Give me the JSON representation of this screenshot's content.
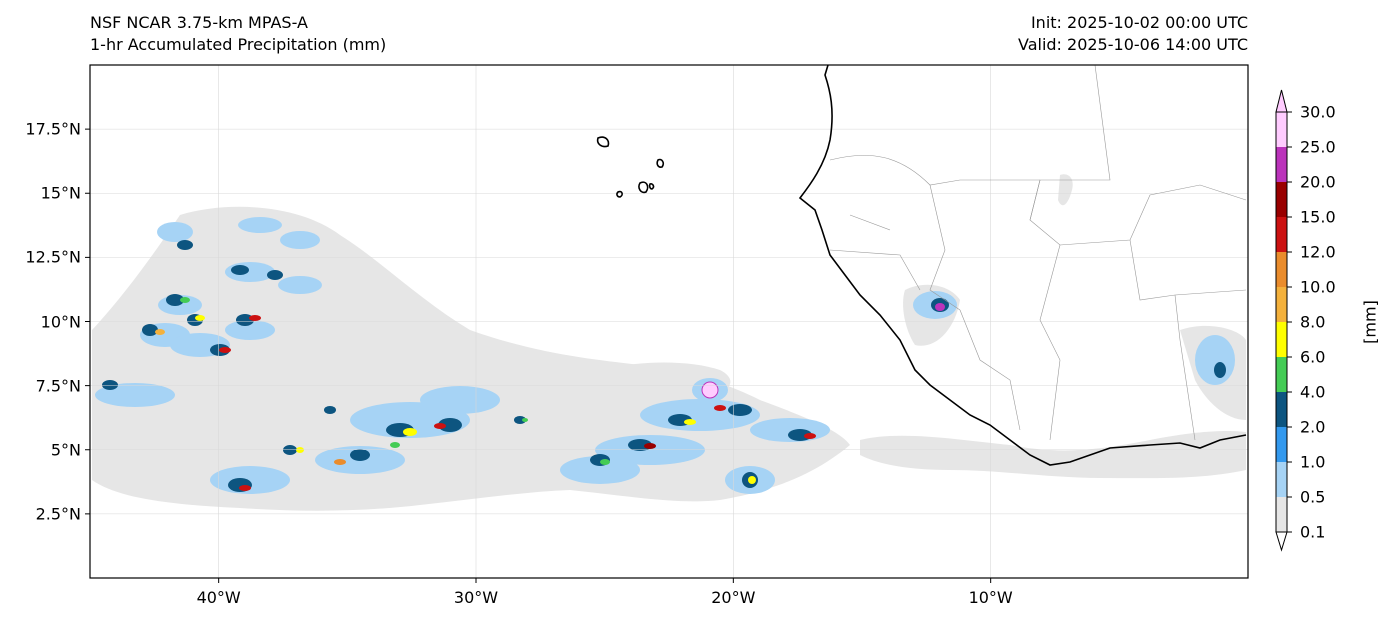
{
  "header": {
    "model": "NSF NCAR 3.75-km MPAS-A",
    "field": "1-hr Accumulated Precipitation (mm)",
    "init": "Init: 2025-10-02 00:00 UTC",
    "valid": "Valid: 2025-10-06 14:00 UTC"
  },
  "map": {
    "lon_range": [
      -45,
      0
    ],
    "lat_range": [
      0,
      20
    ],
    "grid": true,
    "lat_ticks": [
      {
        "value": 17.5,
        "label": "17.5°N"
      },
      {
        "value": 15,
        "label": "15°N"
      },
      {
        "value": 12.5,
        "label": "12.5°N"
      },
      {
        "value": 10,
        "label": "10°N"
      },
      {
        "value": 7.5,
        "label": "7.5°N"
      },
      {
        "value": 5,
        "label": "5°N"
      },
      {
        "value": 2.5,
        "label": "2.5°N"
      }
    ],
    "lon_ticks": [
      {
        "value": -40,
        "label": "40°W"
      },
      {
        "value": -30,
        "label": "30°W"
      },
      {
        "value": -20,
        "label": "20°W"
      },
      {
        "value": -10,
        "label": "10°W"
      }
    ]
  },
  "colorbar": {
    "unit": "[mm]",
    "levels": [
      "0.1",
      "0.5",
      "1.0",
      "2.0",
      "4.0",
      "6.0",
      "8.0",
      "10.0",
      "12.0",
      "15.0",
      "20.0",
      "25.0",
      "30.0"
    ],
    "colors": [
      "#e6e6e6",
      "#a6d3f5",
      "#3399ee",
      "#0d5580",
      "#44cc55",
      "#ffff00",
      "#f4b13c",
      "#ea8c2c",
      "#cc1111",
      "#990000",
      "#bb33bb",
      "#ffccff"
    ],
    "under_color": "#ffffff",
    "over_color": "#ffccff"
  }
}
